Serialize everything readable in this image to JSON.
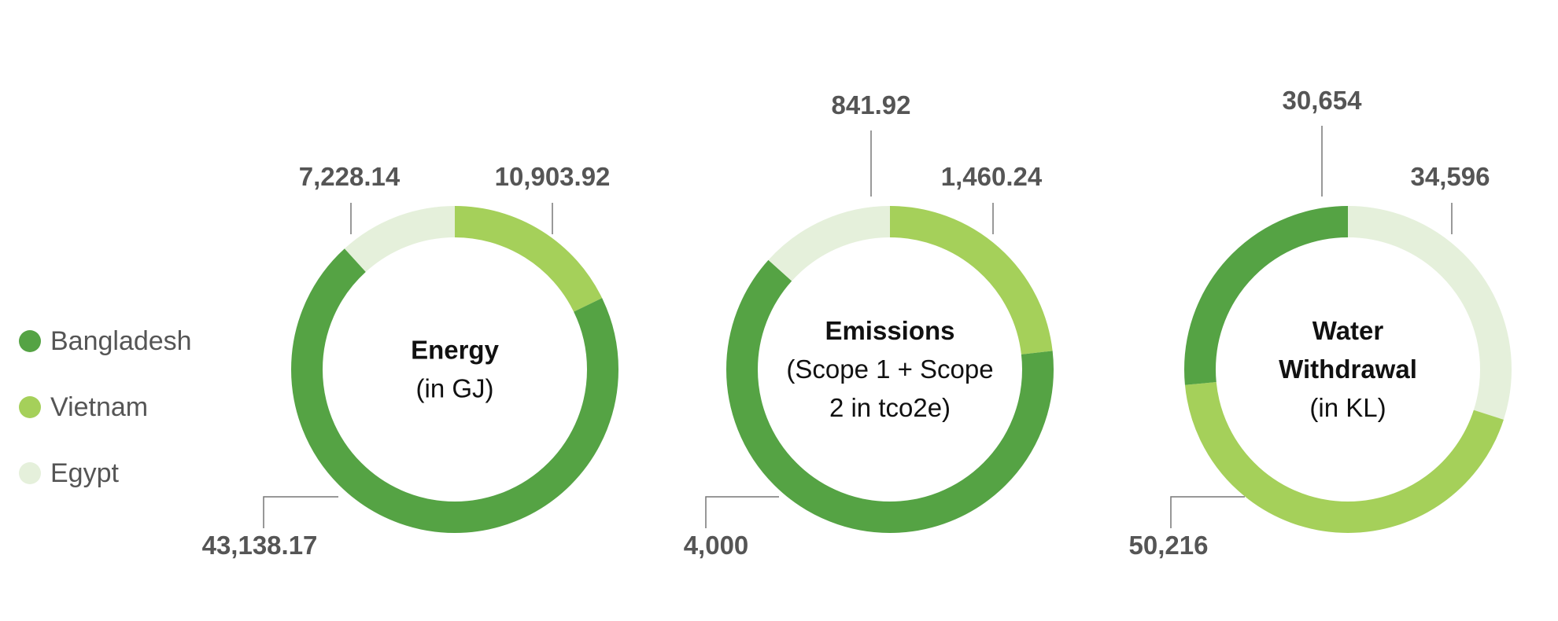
{
  "colors": {
    "Bangladesh": "#55a344",
    "Vietnam": "#a5d05a",
    "Egypt": "#e5f0db"
  },
  "legend": [
    {
      "label": "Bangladesh",
      "color": "#55a344"
    },
    {
      "label": "Vietnam",
      "color": "#a5d05a"
    },
    {
      "label": "Egypt",
      "color": "#e5f0db"
    }
  ],
  "chart_data": [
    {
      "type": "pie",
      "title_lines": [
        "Energy",
        "(in GJ)"
      ],
      "series": [
        {
          "name": "Vietnam",
          "value": 10903.92,
          "label": "10,903.92"
        },
        {
          "name": "Bangladesh",
          "value": 43138.17,
          "label": "43,138.17"
        },
        {
          "name": "Egypt",
          "value": 7228.14,
          "label": "7,228.14"
        }
      ]
    },
    {
      "type": "pie",
      "title_lines": [
        "Emissions",
        "(Scope 1 + Scope",
        "2 in tco2e)"
      ],
      "series": [
        {
          "name": "Vietnam",
          "value": 1460.24,
          "label": "1,460.24"
        },
        {
          "name": "Bangladesh",
          "value": 4000,
          "label": "4,000"
        },
        {
          "name": "Egypt",
          "value": 841.92,
          "label": "841.92"
        }
      ]
    },
    {
      "type": "pie",
      "title_lines": [
        "Water",
        "Withdrawal",
        "(in KL)"
      ],
      "series": [
        {
          "name": "Egypt",
          "value": 34596,
          "label": "34,596"
        },
        {
          "name": "Vietnam",
          "value": 50216,
          "label": "50,216"
        },
        {
          "name": "Bangladesh",
          "value": 30654,
          "label": "30,654"
        }
      ]
    }
  ]
}
